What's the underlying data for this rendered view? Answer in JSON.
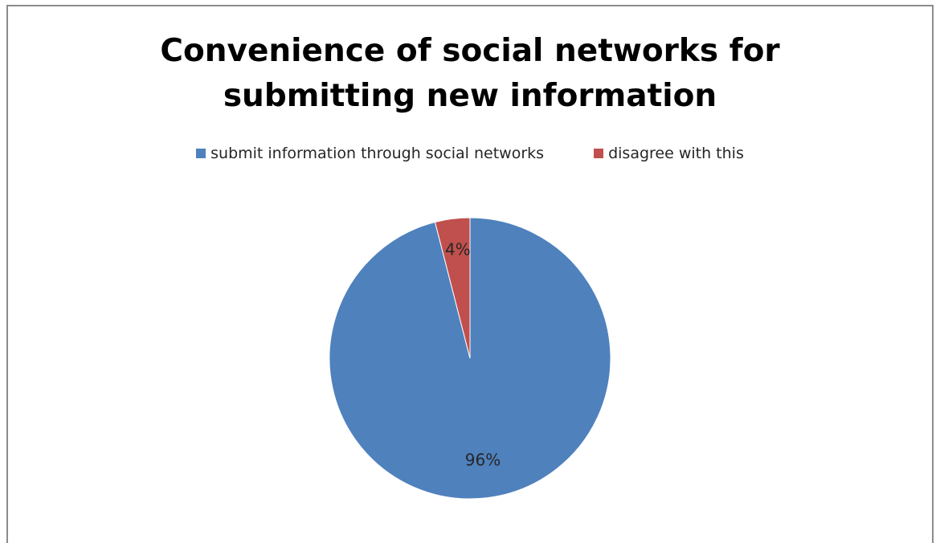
{
  "chart_data": {
    "type": "pie",
    "title_lines": [
      "Convenience of social networks for",
      "submitting new information"
    ],
    "legend_position": "top",
    "slices": [
      {
        "label": "submit information through social networks",
        "value": 96,
        "data_label": "96%",
        "color": "#4f81bd"
      },
      {
        "label": "disagree with this",
        "value": 4,
        "data_label": "4%",
        "color": "#c0504d"
      }
    ]
  }
}
